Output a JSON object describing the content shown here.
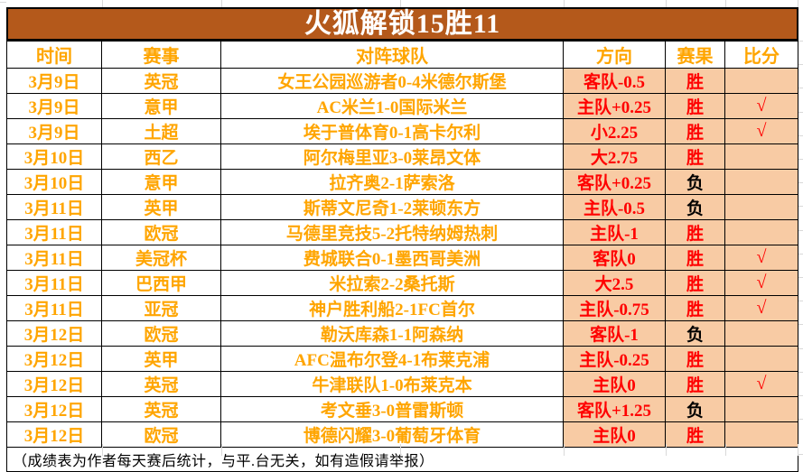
{
  "banner": {
    "title": "火狐解锁15胜11"
  },
  "columns": {
    "time": "时间",
    "league": "赛事",
    "teams": "对阵球队",
    "direction": "方向",
    "result": "赛果",
    "score": "比分"
  },
  "labels": {
    "win": "胜",
    "loss": "负",
    "check": "√"
  },
  "rows": [
    {
      "date": "3月9日",
      "league": "英冠",
      "match": "女王公园巡游者0-4米德尔斯堡",
      "direction": "客队-0.5",
      "result": "胜",
      "score": ""
    },
    {
      "date": "3月9日",
      "league": "意甲",
      "match": "AC米兰1-0国际米兰",
      "direction": "主队+0.25",
      "result": "胜",
      "score": "√"
    },
    {
      "date": "3月9日",
      "league": "土超",
      "match": "埃于普体育0-1高卡尔利",
      "direction": "小2.25",
      "result": "胜",
      "score": "√"
    },
    {
      "date": "3月10日",
      "league": "西乙",
      "match": "阿尔梅里亚3-0莱昂文体",
      "direction": "大2.75",
      "result": "胜",
      "score": ""
    },
    {
      "date": "3月10日",
      "league": "意甲",
      "match": "拉齐奥2-1萨索洛",
      "direction": "客队+0.25",
      "result": "负",
      "score": ""
    },
    {
      "date": "3月11日",
      "league": "英甲",
      "match": "斯蒂文尼奇1-2莱顿东方",
      "direction": "主队-0.5",
      "result": "负",
      "score": ""
    },
    {
      "date": "3月11日",
      "league": "欧冠",
      "match": "马德里竞技5-2托特纳姆热刺",
      "direction": "主队-1",
      "result": "胜",
      "score": ""
    },
    {
      "date": "3月11日",
      "league": "美冠杯",
      "match": "费城联合0-1墨西哥美洲",
      "direction": "客队0",
      "result": "胜",
      "score": "√"
    },
    {
      "date": "3月11日",
      "league": "巴西甲",
      "match": "米拉索2-2桑托斯",
      "direction": "大2.5",
      "result": "胜",
      "score": "√"
    },
    {
      "date": "3月11日",
      "league": "亚冠",
      "match": "神户胜利船2-1FC首尔",
      "direction": "主队-0.75",
      "result": "胜",
      "score": "√"
    },
    {
      "date": "3月12日",
      "league": "欧冠",
      "match": "勒沃库森1-1阿森纳",
      "direction": "客队-1",
      "result": "负",
      "score": ""
    },
    {
      "date": "3月12日",
      "league": "英甲",
      "match": "AFC温布尔登4-1布莱克浦",
      "direction": "主队-0.25",
      "result": "胜",
      "score": ""
    },
    {
      "date": "3月12日",
      "league": "英冠",
      "match": "牛津联队1-0布莱克本",
      "direction": "主队0",
      "result": "胜",
      "score": "√"
    },
    {
      "date": "3月12日",
      "league": "英冠",
      "match": "考文垂3-0普雷斯顿",
      "direction": "客队+1.25",
      "result": "负",
      "score": ""
    },
    {
      "date": "3月12日",
      "league": "欧冠",
      "match": "博德闪耀3-0葡萄牙体育",
      "direction": "主队0",
      "result": "胜",
      "score": ""
    }
  ],
  "footer": {
    "note": "（成绩表为作者每天赛后统计，与平.台无关，如有造假请举报）"
  },
  "colors": {
    "banner_bg": "#B4591B",
    "banner_text": "#FFFFFF",
    "orange_text": "#FFA500",
    "red_text": "#FF0000",
    "black_text": "#000000",
    "peach_bg": "#F8CBA4",
    "border": "#000000",
    "gridline": "#D9D9D9"
  }
}
